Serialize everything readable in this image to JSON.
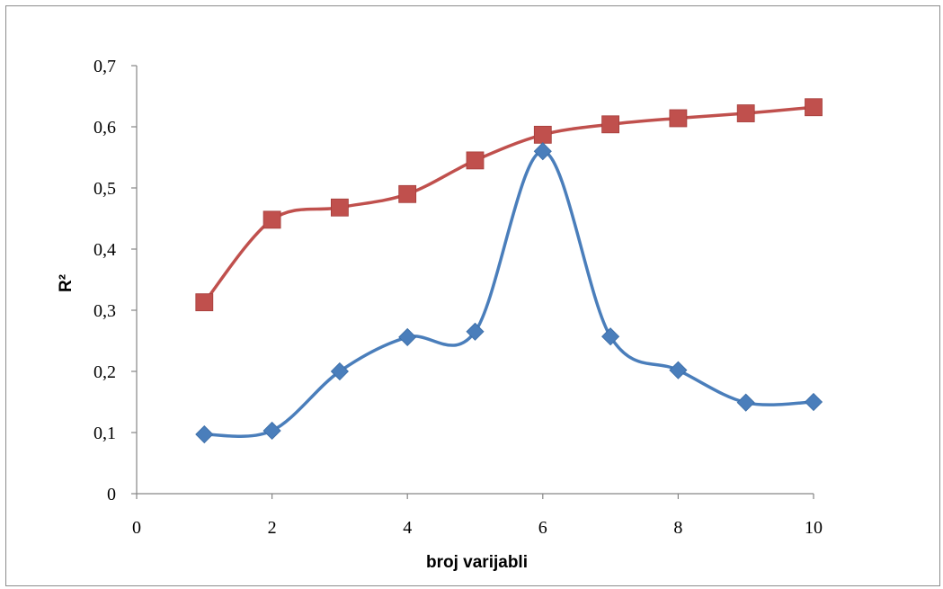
{
  "chart_data": {
    "type": "scatter",
    "title": "",
    "xlabel": "broj varijabli",
    "ylabel": "R²",
    "xlim": [
      0,
      10
    ],
    "ylim": [
      0,
      0.7
    ],
    "x_ticks": [
      0,
      2,
      4,
      6,
      8,
      10
    ],
    "x_tick_labels": [
      "0",
      "2",
      "4",
      "6",
      "8",
      "10"
    ],
    "y_ticks": [
      0,
      0.1,
      0.2,
      0.3,
      0.4,
      0.5,
      0.6,
      0.7
    ],
    "y_tick_labels": [
      "0",
      "0,1",
      "0,2",
      "0,3",
      "0,4",
      "0,5",
      "0,6",
      "0,7"
    ],
    "grid": false,
    "legend": "none",
    "smooth_lines": true,
    "series": [
      {
        "marker": "square",
        "color": "#c0504d",
        "x": [
          1,
          2,
          3,
          4,
          5,
          6,
          7,
          8,
          9,
          10
        ],
        "y": [
          0.313,
          0.448,
          0.468,
          0.49,
          0.545,
          0.587,
          0.604,
          0.614,
          0.622,
          0.632
        ]
      },
      {
        "marker": "diamond",
        "color": "#4a7ebb",
        "x": [
          1,
          2,
          3,
          4,
          5,
          6,
          7,
          8,
          9,
          10
        ],
        "y": [
          0.097,
          0.103,
          0.2,
          0.256,
          0.265,
          0.56,
          0.257,
          0.202,
          0.149,
          0.15
        ]
      }
    ]
  }
}
